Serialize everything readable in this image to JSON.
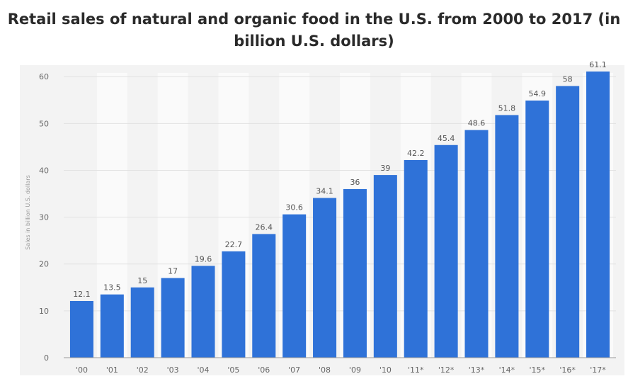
{
  "chart_data": {
    "type": "bar",
    "title_lines": [
      "Retail sales of natural and organic food in the U.S. from 2000 to 2017 (in",
      "billion U.S. dollars)"
    ],
    "ylabel": "Sales in billion U.S. dollars",
    "xlabel": "",
    "categories": [
      "'00",
      "'01",
      "'02",
      "'03",
      "'04",
      "'05",
      "'06",
      "'07",
      "'08",
      "'09",
      "'10",
      "'11*",
      "'12*",
      "'13*",
      "'14*",
      "'15*",
      "'16*",
      "'17*"
    ],
    "values": [
      12.1,
      13.5,
      15,
      17,
      19.6,
      22.7,
      26.4,
      30.6,
      34.1,
      36,
      39,
      42.2,
      45.4,
      48.6,
      51.8,
      54.9,
      58,
      61.1
    ],
    "value_labels": [
      "12.1",
      "13.5",
      "15",
      "17",
      "19.6",
      "22.7",
      "26.4",
      "30.6",
      "34.1",
      "36",
      "39",
      "42.2",
      "45.4",
      "48.6",
      "51.8",
      "54.9",
      "58",
      "61.1"
    ],
    "yticks": [
      0,
      10,
      20,
      30,
      40,
      50,
      60
    ],
    "ylim": [
      0,
      62
    ],
    "grid": true,
    "bar_color": "#2f72d8"
  }
}
